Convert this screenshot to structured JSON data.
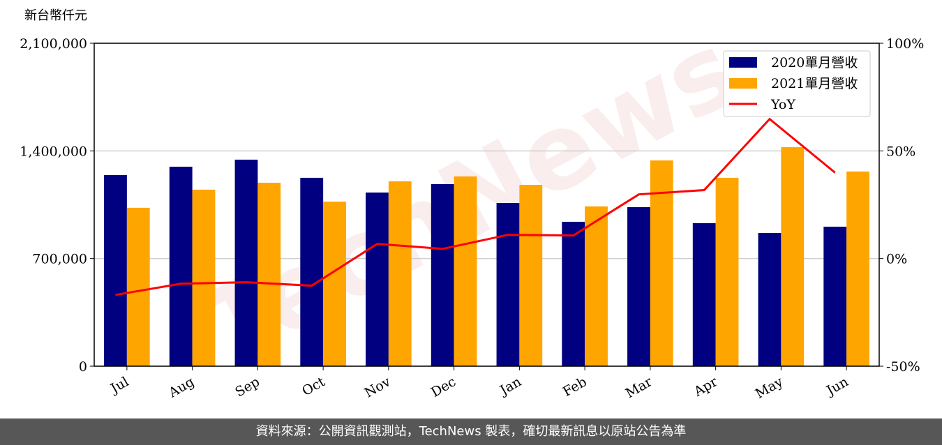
{
  "chart_data": {
    "type": "bar-line",
    "y_axis_label": "新台幣仟元",
    "watermark": "TechNews",
    "categories": [
      "Jul",
      "Aug",
      "Sep",
      "Oct",
      "Nov",
      "Dec",
      "Jan",
      "Feb",
      "Mar",
      "Apr",
      "May",
      "Jun"
    ],
    "series": [
      {
        "name": "2020單月營收",
        "type": "bar",
        "color": "#000080",
        "values": [
          1243000,
          1297000,
          1343000,
          1225000,
          1129000,
          1184000,
          1061000,
          939000,
          1034000,
          930000,
          866000,
          907000
        ]
      },
      {
        "name": "2021單月營收",
        "type": "bar",
        "color": "#ffa500",
        "values": [
          1030000,
          1148000,
          1193000,
          1070000,
          1202000,
          1234000,
          1179000,
          1039000,
          1338000,
          1225000,
          1424000,
          1266000
        ]
      },
      {
        "name": "YoY",
        "type": "line",
        "axis": "y2",
        "color": "#ff0000",
        "values": [
          -16.9,
          -11.7,
          -11.0,
          -12.6,
          6.8,
          4.5,
          11.0,
          10.7,
          29.8,
          31.8,
          64.8,
          39.9
        ]
      }
    ],
    "ylim": [
      0,
      2100000
    ],
    "yticks": [
      0,
      {
        "value": 700000,
        "label": "700,000"
      },
      {
        "value": 1400000,
        "label": "1,400,000"
      },
      {
        "value": 2100000,
        "label": "2,100,000"
      }
    ],
    "y2lim": [
      -50,
      100
    ],
    "y2ticks": [
      {
        "value": -50,
        "label": "-50%"
      },
      {
        "value": 0,
        "label": "0%"
      },
      {
        "value": 50,
        "label": "50%"
      },
      {
        "value": 100,
        "label": "100%"
      }
    ],
    "grid": true,
    "legend": "upper right",
    "footer": "資料來源：公開資訊觀測站，TechNews 製表，確切最新訊息以原站公告為準"
  }
}
